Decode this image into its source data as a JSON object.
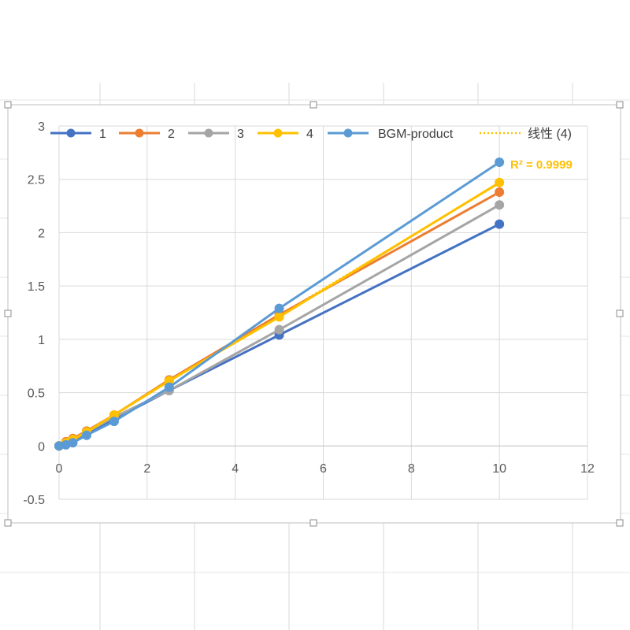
{
  "chart_data": {
    "type": "line",
    "title": "",
    "xlabel": "",
    "ylabel": "",
    "xlim": [
      0,
      12
    ],
    "ylim": [
      -0.5,
      3
    ],
    "xticks": [
      "0",
      "2",
      "4",
      "6",
      "8",
      "10",
      "12"
    ],
    "yticks": [
      "-0.5",
      "0",
      "0.5",
      "1",
      "1.5",
      "2",
      "2.5",
      "3"
    ],
    "grid": true,
    "legend_position": "top",
    "series": [
      {
        "name": "1",
        "color": "#4472C4",
        "x": [
          0,
          0.156,
          0.3125,
          0.625,
          1.25,
          2.5,
          5,
          10
        ],
        "y": [
          0,
          0.02,
          0.05,
          0.12,
          0.25,
          0.52,
          1.04,
          2.08
        ]
      },
      {
        "name": "2",
        "color": "#ED7D31",
        "x": [
          0,
          0.156,
          0.3125,
          0.625,
          1.25,
          2.5,
          5,
          10
        ],
        "y": [
          0,
          0.04,
          0.07,
          0.14,
          0.29,
          0.62,
          1.23,
          2.38
        ]
      },
      {
        "name": "3",
        "color": "#A5A5A5",
        "x": [
          0,
          0.156,
          0.3125,
          0.625,
          1.25,
          2.5,
          5,
          10
        ],
        "y": [
          0,
          0.03,
          0.06,
          0.13,
          0.27,
          0.52,
          1.09,
          2.26
        ]
      },
      {
        "name": "4",
        "color": "#FFC000",
        "x": [
          0,
          0.156,
          0.3125,
          0.625,
          1.25,
          2.5,
          5,
          10
        ],
        "y": [
          0,
          0.03,
          0.06,
          0.13,
          0.29,
          0.61,
          1.21,
          2.47
        ]
      },
      {
        "name": "BGM-product",
        "color": "#5B9BD5",
        "x": [
          0,
          0.156,
          0.3125,
          0.625,
          1.25,
          2.5,
          5,
          10
        ],
        "y": [
          0,
          0.01,
          0.03,
          0.1,
          0.23,
          0.55,
          1.29,
          2.66
        ]
      }
    ],
    "trendline": {
      "name": "线性 (4)",
      "of_series": "4",
      "color": "#FFC000",
      "style": "dotted",
      "r2_label": "R² = 0.9999"
    }
  }
}
